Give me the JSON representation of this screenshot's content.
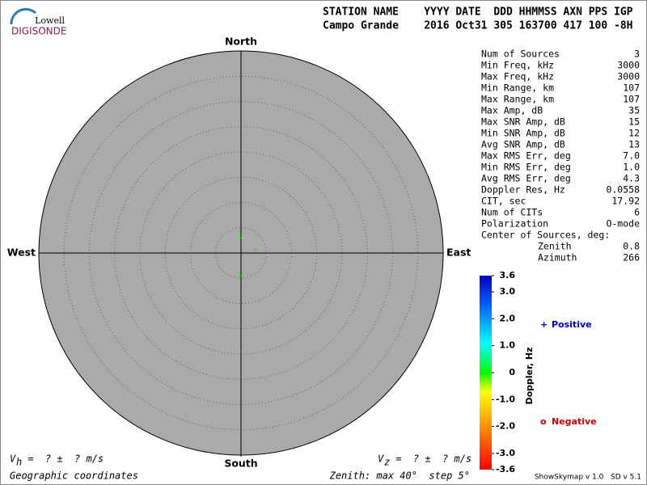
{
  "logo": {
    "line1": "Lowell",
    "line2": "DIGISONDE"
  },
  "header": {
    "columns": "STATION NAME    YYYY DATE  DDD HHMMSS AXN PPS IGP",
    "values": "Campo Grande    2016 Oct31 305 163700 417 100 -8H"
  },
  "stats": {
    "rows": [
      [
        "Num of Sources",
        "3"
      ],
      [
        "Min Freq, kHz",
        "3000"
      ],
      [
        "Max Freq, kHz",
        "3000"
      ],
      [
        "Min Range, km",
        "107"
      ],
      [
        "Max Range, km",
        "107"
      ],
      [
        "Max Amp, dB",
        "35"
      ],
      [
        "Max SNR Amp, dB",
        "15"
      ],
      [
        "Min SNR Amp, dB",
        "12"
      ],
      [
        "Avg SNR Amp, dB",
        "13"
      ],
      [
        "Max RMS Err, deg",
        "7.0"
      ],
      [
        "Min RMS Err, deg",
        "1.0"
      ],
      [
        "Avg RMS Err, deg",
        "4.3"
      ],
      [
        "Doppler Res, Hz",
        "0.0558"
      ],
      [
        "CIT, sec",
        "17.92"
      ],
      [
        "Num of CITs",
        "6"
      ],
      [
        "Polarization",
        "O-mode"
      ]
    ],
    "center_title": "Center of Sources, deg:",
    "center_rows": [
      [
        "Zenith",
        "0.8"
      ],
      [
        "Azimuth",
        "266"
      ]
    ]
  },
  "chart_data": {
    "type": "polar-scatter",
    "directions": {
      "north": "North",
      "south": "South",
      "east": "East",
      "west": "West"
    },
    "rlim": [
      0,
      40
    ],
    "rticks": [
      5,
      10,
      15,
      20,
      25,
      30,
      35
    ],
    "series": [
      {
        "color": "#00ff00",
        "zenith": [
          3.0,
          2.9,
          4.5
        ],
        "azimuth": [
          357,
          77,
          182
        ]
      }
    ],
    "colorbar": {
      "label": "Doppler, Hz",
      "lim": [
        -3.6,
        3.6
      ],
      "ticks": [
        3.6,
        {
          "value": 3,
          "label": "3.0"
        },
        {
          "value": 2,
          "label": "2.0"
        },
        {
          "value": 1,
          "label": "1.0"
        },
        0,
        {
          "value": -1,
          "label": "-1.0"
        },
        {
          "value": -2,
          "label": "-2.0"
        },
        {
          "value": -3,
          "label": "-3.0"
        },
        -3.6
      ]
    },
    "legend": [
      {
        "symbol": "+",
        "name": "Positive",
        "color": "#0000cc"
      },
      {
        "symbol": "o",
        "name": "Negative",
        "color": "#cc0000"
      }
    ]
  },
  "footer": {
    "vh_symbol": "V",
    "vh_sub": "h",
    "vh_text": " =  ? ±  ? m/s",
    "vz_symbol": "V",
    "vz_sub": "z",
    "vz_text": " =  ? ±  ? m/s",
    "coordinates": "Geographic coordinates",
    "zenith_note": "Zenith: max 40°  step 5°",
    "version": "ShowSkymap v 1.0   SD v 5.1"
  }
}
